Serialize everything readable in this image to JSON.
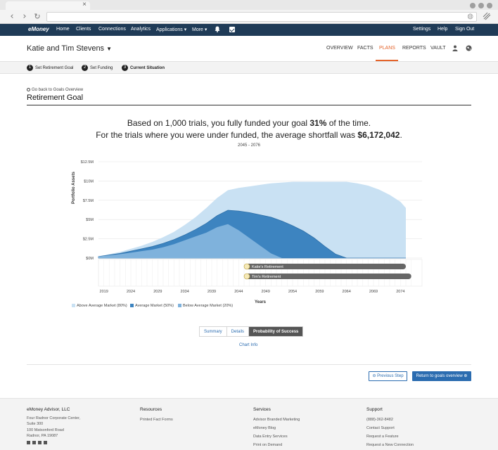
{
  "app": {
    "logo": "eMoney",
    "nav": [
      "Home",
      "Clients",
      "Connections",
      "Analytics",
      "Applications ▾",
      "More ▾"
    ],
    "nav_right": [
      "Settings",
      "Help",
      "Sign Out"
    ]
  },
  "client": {
    "name": "Katie and Tim Stevens",
    "tabs": [
      "OVERVIEW",
      "FACTS",
      "PLANS",
      "REPORTS",
      "VAULT"
    ],
    "active_tab": "PLANS"
  },
  "steps": [
    {
      "num": "1",
      "label": "Set Retirement Goal"
    },
    {
      "num": "2",
      "label": "Set Funding"
    },
    {
      "num": "3",
      "label": "Current Situation"
    }
  ],
  "page": {
    "back_link": "Go back to Goals Overview",
    "title": "Retirement Goal",
    "summary1_pre": "Based on 1,000 trials, you fully funded your goal ",
    "summary1_bold": "31%",
    "summary1_post": " of the time.",
    "summary2_pre": "For the trials where you were under funded, the average shortfall was ",
    "summary2_bold": "$6,172,042",
    "summary2_post": ".",
    "range": "2045 - 2076"
  },
  "chart_data": {
    "type": "area",
    "xlabel": "Years",
    "ylabel": "Portfolio Assets",
    "x": [
      2018,
      2020,
      2022,
      2024,
      2026,
      2028,
      2030,
      2032,
      2034,
      2036,
      2038,
      2040,
      2042,
      2044,
      2046,
      2048,
      2050,
      2052,
      2054,
      2056,
      2058,
      2060,
      2062,
      2064,
      2066,
      2068,
      2070,
      2072,
      2074,
      2075
    ],
    "x_ticks": [
      "2019",
      "2024",
      "2029",
      "2034",
      "2039",
      "2044",
      "2049",
      "2054",
      "2059",
      "2064",
      "2069",
      "2074"
    ],
    "y_ticks": [
      "$0M",
      "$2.5M",
      "$5M",
      "$7.5M",
      "$10M",
      "$12.5M"
    ],
    "ylim": [
      0,
      12.5
    ],
    "series": [
      {
        "name": "Above Average Market (80%)",
        "color": "#c9e1f3",
        "values": [
          0.2,
          0.5,
          0.8,
          1.2,
          1.6,
          2.1,
          2.7,
          3.4,
          4.3,
          5.3,
          6.5,
          7.8,
          8.8,
          9.1,
          9.3,
          9.5,
          9.7,
          9.8,
          9.9,
          9.9,
          9.9,
          9.9,
          9.9,
          9.9,
          9.7,
          9.4,
          8.9,
          8.2,
          7.3,
          6.5
        ]
      },
      {
        "name": "Average Market (50%)",
        "color": "#3d84c0",
        "values": [
          0.2,
          0.4,
          0.6,
          0.9,
          1.2,
          1.5,
          1.9,
          2.4,
          3.0,
          3.7,
          4.5,
          5.5,
          6.2,
          6.1,
          5.9,
          5.6,
          5.3,
          4.8,
          4.2,
          3.5,
          2.6,
          1.5,
          0.5,
          0,
          0,
          0,
          0,
          0,
          0,
          0
        ]
      },
      {
        "name": "Below Average Market (20%)",
        "color": "#7fb2dc",
        "values": [
          0.2,
          0.35,
          0.5,
          0.7,
          0.9,
          1.1,
          1.4,
          1.8,
          2.3,
          2.8,
          3.3,
          4.0,
          4.4,
          3.6,
          2.6,
          1.6,
          0.6,
          0,
          0,
          0,
          0,
          0,
          0,
          0,
          0,
          0,
          0,
          0,
          0,
          0
        ]
      }
    ],
    "legend_placement": "bottom-left",
    "grid": true,
    "annotations": [
      {
        "label": "Katie's Retirement",
        "start": 2045,
        "end": 2075
      },
      {
        "label": "Tim's Retirement",
        "start": 2045,
        "end": 2076
      }
    ]
  },
  "view_tabs": [
    "Summary",
    "Details",
    "Probability of Success"
  ],
  "active_view_tab": "Probability of Success",
  "chart_info": "Chart Info",
  "buttons": {
    "previous": "Previous Step",
    "next": "Return to goals overview"
  },
  "footer": {
    "company": "eMoney Advisor, LLC",
    "address": [
      "Four Radnor Corporate Center,",
      "Suite 300",
      "100 Matsonford Road",
      "Radnor, PA 19087"
    ],
    "resources_h": "Resources",
    "resources": [
      "Printed Fact Forms"
    ],
    "services_h": "Services",
    "services": [
      "Advisor Branded Marketing",
      "eMoney Blog",
      "Data Entry Services",
      "Print on Demand"
    ],
    "support_h": "Support",
    "support": [
      "(888)-362-8482",
      "Contact Support",
      "Request a Feature",
      "Request a New Connection"
    ]
  }
}
